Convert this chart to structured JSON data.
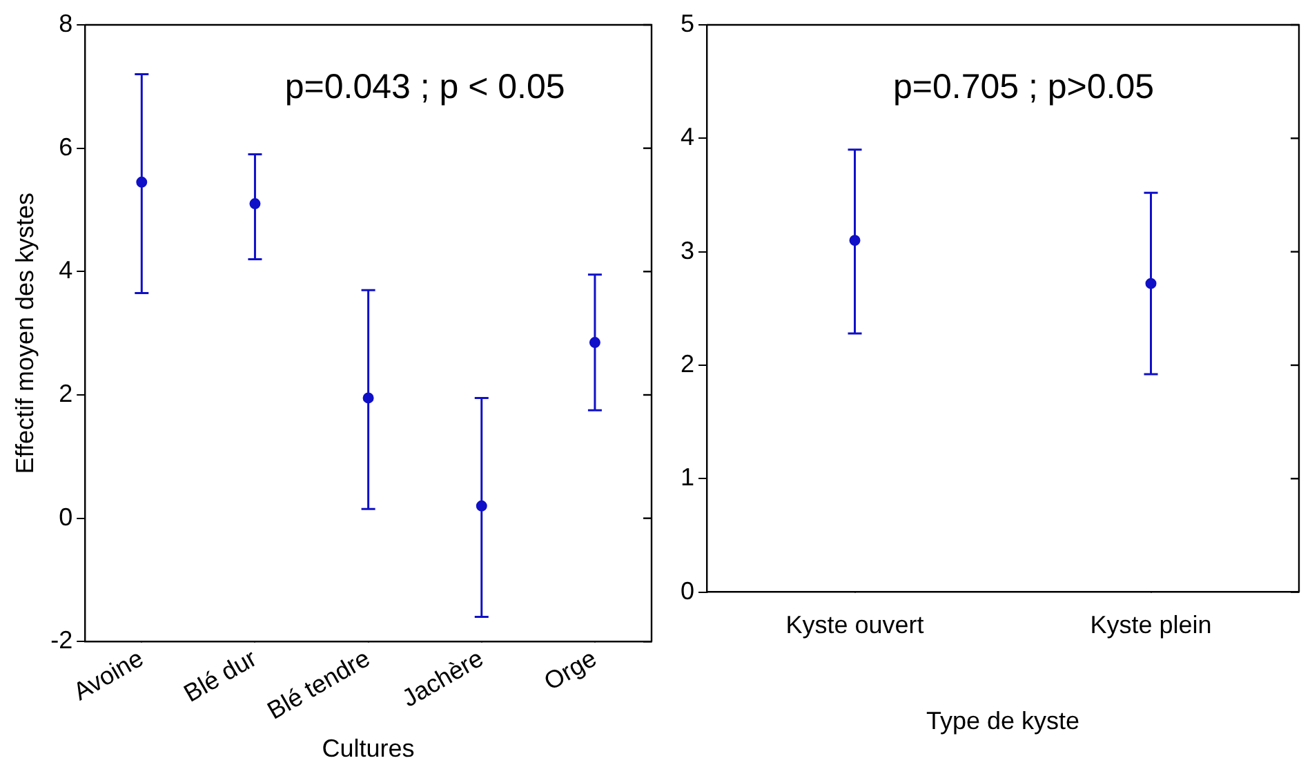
{
  "chart_data": [
    {
      "type": "scatter",
      "categories": [
        "Avoine",
        "Blé dur",
        "Blé tendre",
        "Jachère",
        "Orge"
      ],
      "values": [
        5.45,
        5.1,
        1.95,
        0.2,
        2.85
      ],
      "errors": [
        [
          3.65,
          7.2
        ],
        [
          4.2,
          5.9
        ],
        [
          0.15,
          3.7
        ],
        [
          -1.6,
          1.95
        ],
        [
          1.75,
          3.95
        ]
      ],
      "color": "#1010c8",
      "marker": "circle",
      "xlabel": "Cultures",
      "ylabel": "Effectif moyen des kystes",
      "ylim": [
        -2,
        8
      ],
      "yticks": [
        -2,
        0,
        2,
        4,
        6,
        8
      ],
      "grid": false,
      "annotations": [
        "p=0.043 ; p < 0.05"
      ]
    },
    {
      "type": "scatter",
      "categories": [
        "Kyste ouvert",
        "Kyste plein"
      ],
      "values": [
        3.1,
        2.72
      ],
      "errors": [
        [
          2.28,
          3.9
        ],
        [
          1.92,
          3.52
        ]
      ],
      "color": "#1010c8",
      "marker": "circle",
      "xlabel": "Type de kyste",
      "ylim": [
        0,
        5
      ],
      "yticks": [
        0,
        1,
        2,
        3,
        4,
        5
      ],
      "grid": false,
      "annotations": [
        "p=0.705 ; p>0.05"
      ]
    }
  ]
}
